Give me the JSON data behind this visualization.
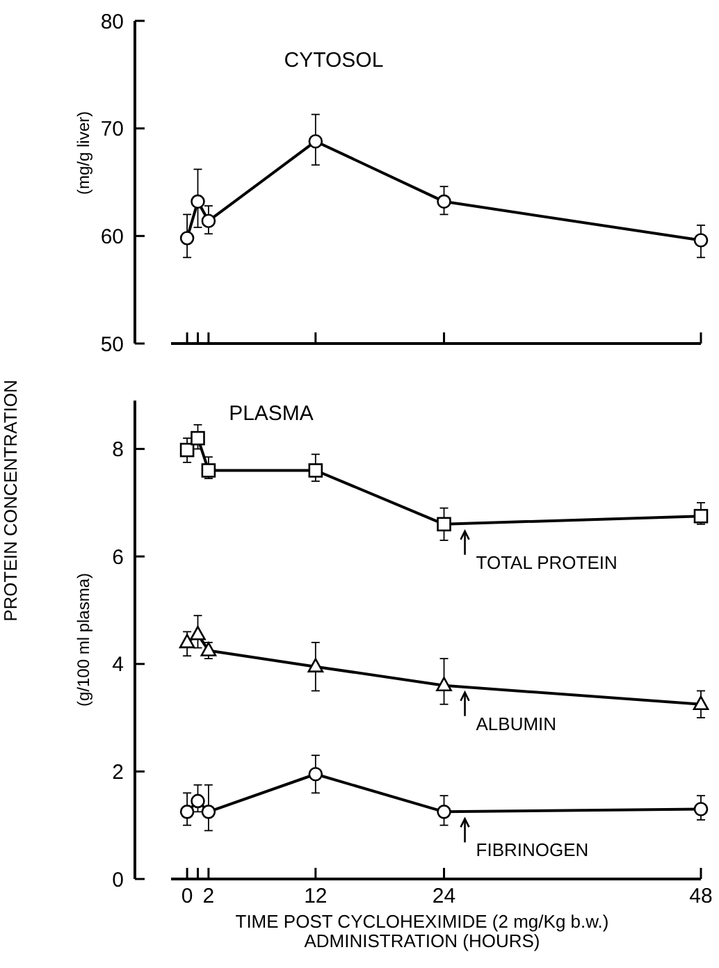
{
  "chart_data": [
    {
      "type": "line",
      "title": "CYTOSOL",
      "ylabel": "(mg/g liver)",
      "annotations": [
        "PROTEIN CONCENTRATION"
      ],
      "x": [
        0,
        1,
        2,
        12,
        24,
        48
      ],
      "xlim": [
        -1.5,
        48
      ],
      "xticks": [
        {
          "value": 0,
          "label": null
        },
        {
          "value": 1,
          "label": null
        },
        {
          "value": 2,
          "label": null
        },
        {
          "value": 12,
          "label": null
        },
        {
          "value": 24,
          "label": null
        },
        {
          "value": 48,
          "label": null
        }
      ],
      "ylim": [
        50,
        80
      ],
      "yticks": [
        50,
        60,
        70,
        80
      ],
      "tick_labels": "y",
      "grid": false,
      "series": [
        {
          "color": "#000000",
          "marker": "circle",
          "values": [
            59.8,
            63.2,
            61.4,
            68.8,
            63.2,
            59.6
          ],
          "errors": [
            [
              58.0,
              62.0
            ],
            [
              60.8,
              66.2
            ],
            [
              60.2,
              62.8
            ],
            [
              66.6,
              71.3
            ],
            [
              62.0,
              64.6
            ],
            [
              58.0,
              61.0
            ]
          ]
        }
      ]
    },
    {
      "type": "line",
      "title": "PLASMA",
      "ylabel": "(g/100 ml plasma)",
      "xlabel": "TIME POST CYCLOHEXIMIDE (2 mg/Kg b.w.)\nADMINISTRATION (HOURS)",
      "x": [
        0,
        1,
        2,
        12,
        24,
        48
      ],
      "xlim": [
        -1.5,
        48
      ],
      "xticks": [
        0,
        {
          "value": 1,
          "label": null
        },
        2,
        12,
        24,
        48
      ],
      "ylim": [
        0,
        8.9
      ],
      "yticks": [
        0,
        2,
        4,
        6,
        8
      ],
      "grid": false,
      "legend": "right",
      "series": [
        {
          "name": "TOTAL PROTEIN",
          "color": "#000000",
          "marker": "square",
          "values": [
            7.98,
            8.2,
            7.6,
            7.6,
            6.6,
            6.75
          ],
          "errors": [
            [
              7.75,
              8.2
            ],
            [
              8.0,
              8.45
            ],
            [
              7.45,
              7.85
            ],
            [
              7.4,
              7.9
            ],
            [
              6.3,
              6.9
            ],
            [
              6.6,
              7.0
            ]
          ]
        },
        {
          "name": "ALBUMIN",
          "color": "#000000",
          "marker": "triangle",
          "values": [
            4.4,
            4.55,
            4.25,
            3.95,
            3.6,
            3.25
          ],
          "errors": [
            [
              4.15,
              4.6
            ],
            [
              4.3,
              4.9
            ],
            [
              4.1,
              4.4
            ],
            [
              3.5,
              4.4
            ],
            [
              3.25,
              4.1
            ],
            [
              3.0,
              3.5
            ]
          ]
        },
        {
          "name": "FIBRINOGEN",
          "color": "#000000",
          "marker": "circle",
          "values": [
            1.25,
            1.45,
            1.25,
            1.95,
            1.25,
            1.3
          ],
          "errors": [
            [
              1.0,
              1.6
            ],
            [
              1.25,
              1.75
            ],
            [
              0.9,
              1.75
            ],
            [
              1.6,
              2.3
            ],
            [
              1.0,
              1.55
            ],
            [
              1.1,
              1.55
            ]
          ]
        }
      ]
    }
  ]
}
